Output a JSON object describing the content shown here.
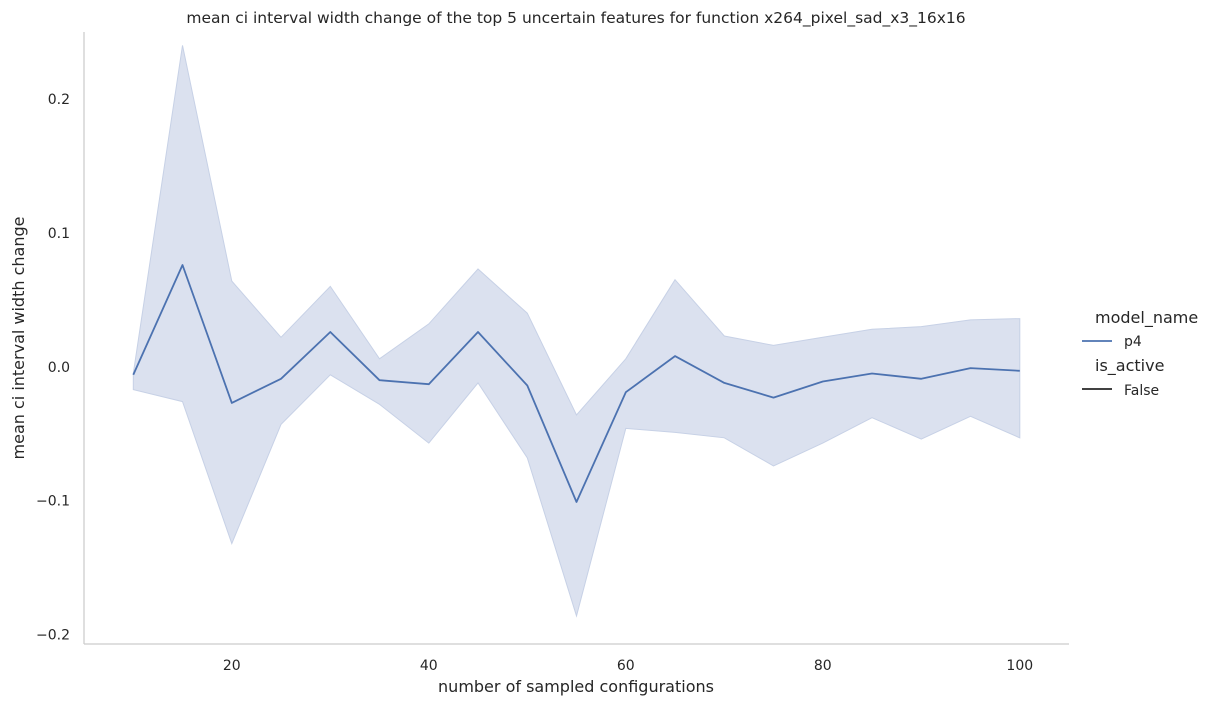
{
  "chart_data": {
    "type": "line",
    "title": "mean ci interval width change of the top 5 uncertain features for function x264_pixel_sad_x3_16x16",
    "xlabel": "number of sampled configurations",
    "ylabel": "mean ci interval width change",
    "xlim": [
      5,
      105
    ],
    "ylim": [
      -0.207,
      0.25
    ],
    "x_ticks": [
      20,
      40,
      60,
      80,
      100
    ],
    "x_tick_labels": [
      "20",
      "40",
      "60",
      "80",
      "100"
    ],
    "y_ticks": [
      -0.2,
      -0.1,
      0.0,
      0.1,
      0.2
    ],
    "y_tick_labels": [
      "−0.2",
      "−0.1",
      "0.0",
      "0.1",
      "0.2"
    ],
    "grid": false,
    "legend_position": "right",
    "legend": {
      "hue_title": "model_name",
      "hue_entries": [
        {
          "label": "p4",
          "color": "#4c72b0"
        }
      ],
      "style_title": "is_active",
      "style_entries": [
        {
          "label": "False",
          "color": "#262626"
        }
      ]
    },
    "series": [
      {
        "name": "p4",
        "color": "#4c72b0",
        "band_color": "#c7d1e6",
        "x": [
          10,
          15,
          20,
          25,
          30,
          35,
          40,
          45,
          50,
          55,
          60,
          65,
          70,
          75,
          80,
          85,
          90,
          95,
          100
        ],
        "y": [
          -0.006,
          0.076,
          -0.027,
          -0.009,
          0.026,
          -0.01,
          -0.013,
          0.026,
          -0.014,
          -0.101,
          -0.019,
          0.008,
          -0.012,
          -0.023,
          -0.011,
          -0.005,
          -0.009,
          -0.001,
          -0.003
        ],
        "ci_upper": [
          -0.005,
          0.24,
          0.064,
          0.022,
          0.06,
          0.006,
          0.032,
          0.073,
          0.04,
          -0.036,
          0.006,
          0.065,
          0.023,
          0.016,
          0.022,
          0.028,
          0.03,
          0.035,
          0.036
        ],
        "ci_lower": [
          -0.017,
          -0.026,
          -0.132,
          -0.043,
          -0.006,
          -0.028,
          -0.057,
          -0.012,
          -0.068,
          -0.186,
          -0.046,
          -0.049,
          -0.053,
          -0.074,
          -0.057,
          -0.038,
          -0.054,
          -0.037,
          -0.053
        ]
      }
    ]
  }
}
